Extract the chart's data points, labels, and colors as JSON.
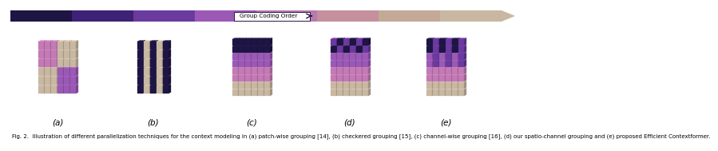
{
  "title": "Fig. 2.  Illustration of different parallelization techniques for the context modeling in (a) patch-wise grouping [14], (b) checkered grouping [15], (c) channel-wise grouping [16], (d) our spatio-channel grouping and (e) proposed Efficient Contextformer.",
  "arrow_colors": [
    "#1e1545",
    "#3d2275",
    "#6b3a9e",
    "#9b59b6",
    "#b87ab0",
    "#c4909e",
    "#c4a898",
    "#c8b8a2"
  ],
  "arrow_label": "Group Coding Order",
  "subfig_labels": [
    "(a)",
    "(b)",
    "(c)",
    "(d)",
    "(e)"
  ],
  "background_color": "#ffffff",
  "caption_fontsize": 5.0,
  "label_fontsize": 7.5,
  "arrow_box_color": "white",
  "arrow_box_edge": "#2a1540",
  "col_dark": "#1e1545",
  "col_med_dark": "#3d2275",
  "col_purple": "#6b3a9e",
  "col_violet": "#9b59b6",
  "col_pink": "#c47ab5",
  "col_mauve": "#c4909e",
  "col_tan": "#c8b8a2",
  "col_light_tan": "#d4c4aa"
}
